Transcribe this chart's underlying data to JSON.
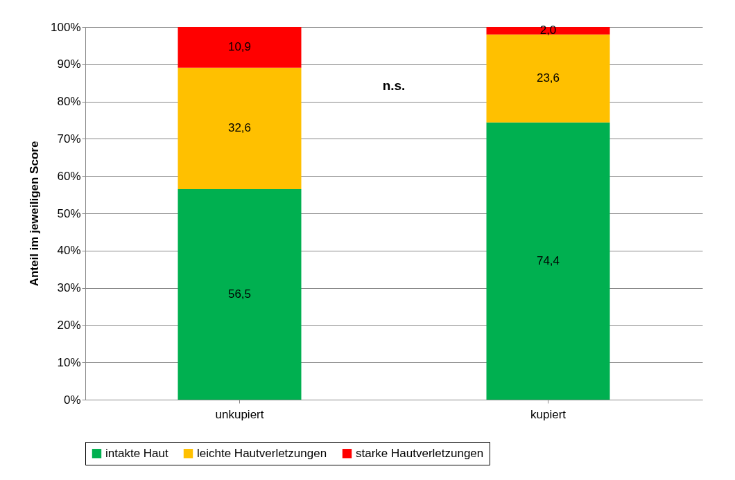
{
  "chart_data": {
    "type": "bar",
    "stacked": true,
    "ylabel": "Anteil im jeweiligen Score",
    "categories": [
      "unkupiert",
      "kupiert"
    ],
    "series": [
      {
        "name": "intakte Haut",
        "color": "#00b050",
        "values": [
          56.5,
          74.4
        ],
        "value_labels": [
          "56,5",
          "74,4"
        ]
      },
      {
        "name": "leichte Hautverletzungen",
        "color": "#ffc000",
        "values": [
          32.6,
          23.6
        ],
        "value_labels": [
          "32,6",
          "23,6"
        ]
      },
      {
        "name": "starke Hautverletzungen",
        "color": "#ff0000",
        "values": [
          10.9,
          2.0
        ],
        "value_labels": [
          "10,9",
          "2,0"
        ]
      }
    ],
    "ylim": [
      0,
      100
    ],
    "yticks": [
      {
        "value": 0,
        "label": "0%"
      },
      {
        "value": 10,
        "label": "10%"
      },
      {
        "value": 20,
        "label": "20%"
      },
      {
        "value": 30,
        "label": "30%"
      },
      {
        "value": 40,
        "label": "40%"
      },
      {
        "value": 50,
        "label": "50%"
      },
      {
        "value": 60,
        "label": "60%"
      },
      {
        "value": 70,
        "label": "70%"
      },
      {
        "value": 80,
        "label": "80%"
      },
      {
        "value": 90,
        "label": "90%"
      },
      {
        "value": 100,
        "label": "100%"
      }
    ],
    "grid": "y",
    "legend": "bottom",
    "annotations": [
      "n.s."
    ]
  }
}
